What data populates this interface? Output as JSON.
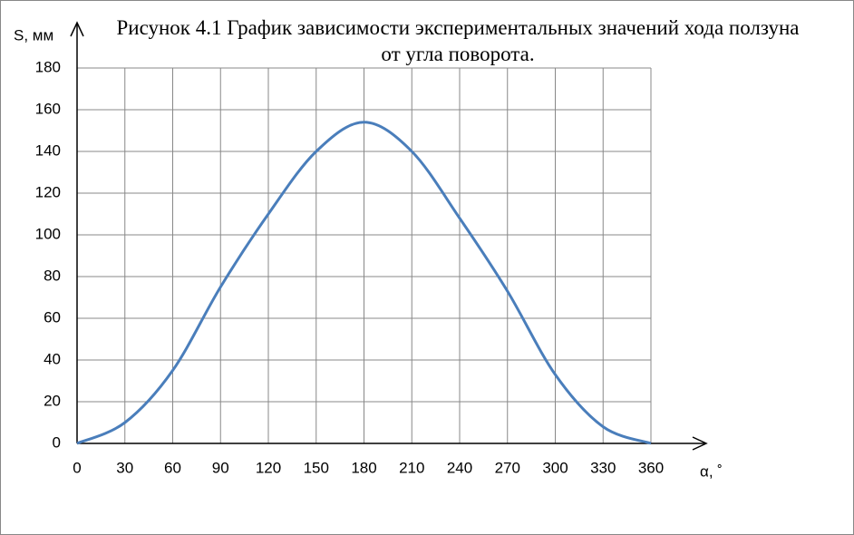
{
  "chart_data": {
    "type": "line",
    "title": "Рисунок  4.1 График зависимости экспериментальных  значений хода ползуна от угла поворота.",
    "x_label": "α, ˚",
    "y_label": "S, мм",
    "x": [
      0,
      30,
      60,
      90,
      120,
      150,
      180,
      210,
      240,
      270,
      300,
      330,
      360
    ],
    "series": [
      {
        "name": "S",
        "color": "#4a7ebb",
        "values": [
          0,
          10,
          35,
          75,
          110,
          140,
          154,
          140,
          108,
          73,
          33,
          8,
          0
        ]
      }
    ],
    "xlim": [
      0,
      360
    ],
    "xticks": [
      0,
      30,
      60,
      90,
      120,
      150,
      180,
      210,
      240,
      270,
      300,
      330,
      360
    ],
    "ylim": [
      0,
      180
    ],
    "yticks": [
      0,
      20,
      40,
      60,
      80,
      100,
      120,
      140,
      160,
      180
    ],
    "grid": true,
    "smooth": true
  }
}
